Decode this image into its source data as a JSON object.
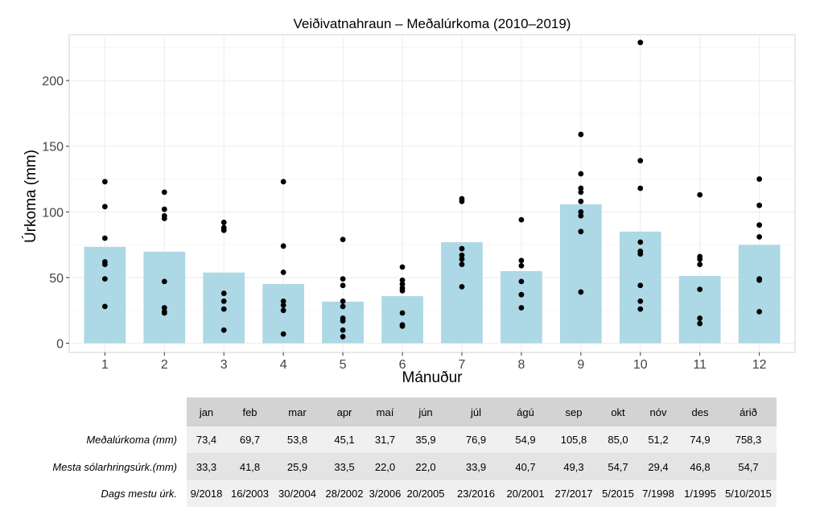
{
  "chart_data": {
    "type": "bar",
    "title": "Veiðivatnahraun – Meðalúrkoma (2010–2019)",
    "xlabel": "Mánuður",
    "ylabel": "Úrkoma (mm)",
    "categories": [
      "1",
      "2",
      "3",
      "4",
      "5",
      "6",
      "7",
      "8",
      "9",
      "10",
      "11",
      "12"
    ],
    "x": [
      1,
      2,
      3,
      4,
      5,
      6,
      7,
      8,
      9,
      10,
      11,
      12
    ],
    "values": [
      73.4,
      69.7,
      53.8,
      45.1,
      31.7,
      35.9,
      76.9,
      54.9,
      105.8,
      85.0,
      51.2,
      74.9
    ],
    "points": [
      [
        123,
        104,
        80,
        62,
        60,
        49,
        28
      ],
      [
        115,
        102,
        97,
        95,
        47,
        27,
        24,
        23
      ],
      [
        92,
        88,
        86,
        38,
        32,
        26,
        10
      ],
      [
        123,
        74,
        54,
        32,
        29,
        25,
        7
      ],
      [
        79,
        49,
        44,
        32,
        28,
        19,
        17,
        10,
        5
      ],
      [
        58,
        48,
        45,
        42,
        40,
        23,
        14,
        13
      ],
      [
        110,
        108,
        72,
        67,
        64,
        60,
        43
      ],
      [
        94,
        63,
        59,
        47,
        37,
        27
      ],
      [
        159,
        129,
        118,
        115,
        108,
        100,
        97,
        85,
        39
      ],
      [
        229,
        139,
        118,
        77,
        70,
        68,
        44,
        32,
        26
      ],
      [
        113,
        66,
        64,
        60,
        41,
        19,
        15
      ],
      [
        125,
        105,
        90,
        81,
        49,
        48,
        24
      ]
    ],
    "ylim": [
      -7,
      235
    ],
    "yticks": [
      0,
      50,
      100,
      150,
      200
    ],
    "grid": true,
    "colors": {
      "bar": "#add8e6",
      "point": "#000000",
      "panel": "#ffffff",
      "grid": "#ebebeb"
    }
  },
  "table": {
    "headers": [
      "jan",
      "feb",
      "mar",
      "apr",
      "maí",
      "jún",
      "júl",
      "ágú",
      "sep",
      "okt",
      "nóv",
      "des",
      "árið"
    ],
    "rows": [
      {
        "label": "Meðalúrkoma (mm)",
        "cells": [
          "73,4",
          "69,7",
          "53,8",
          "45,1",
          "31,7",
          "35,9",
          "76,9",
          "54,9",
          "105,8",
          "85,0",
          "51,2",
          "74,9",
          "758,3"
        ]
      },
      {
        "label": "Mesta sólarhringsúrk.(mm)",
        "cells": [
          "33,3",
          "41,8",
          "25,9",
          "33,5",
          "22,0",
          "22,0",
          "33,9",
          "40,7",
          "49,3",
          "54,7",
          "29,4",
          "46,8",
          "54,7"
        ]
      },
      {
        "label": "Dags mestu úrk.",
        "cells": [
          "9/2018",
          "16/2003",
          "30/2004",
          "28/2002",
          "3/2006",
          "20/2005",
          "23/2016",
          "20/2001",
          "27/2017",
          "5/2015",
          "7/1998",
          "1/1995",
          "5/10/2015"
        ]
      }
    ]
  }
}
